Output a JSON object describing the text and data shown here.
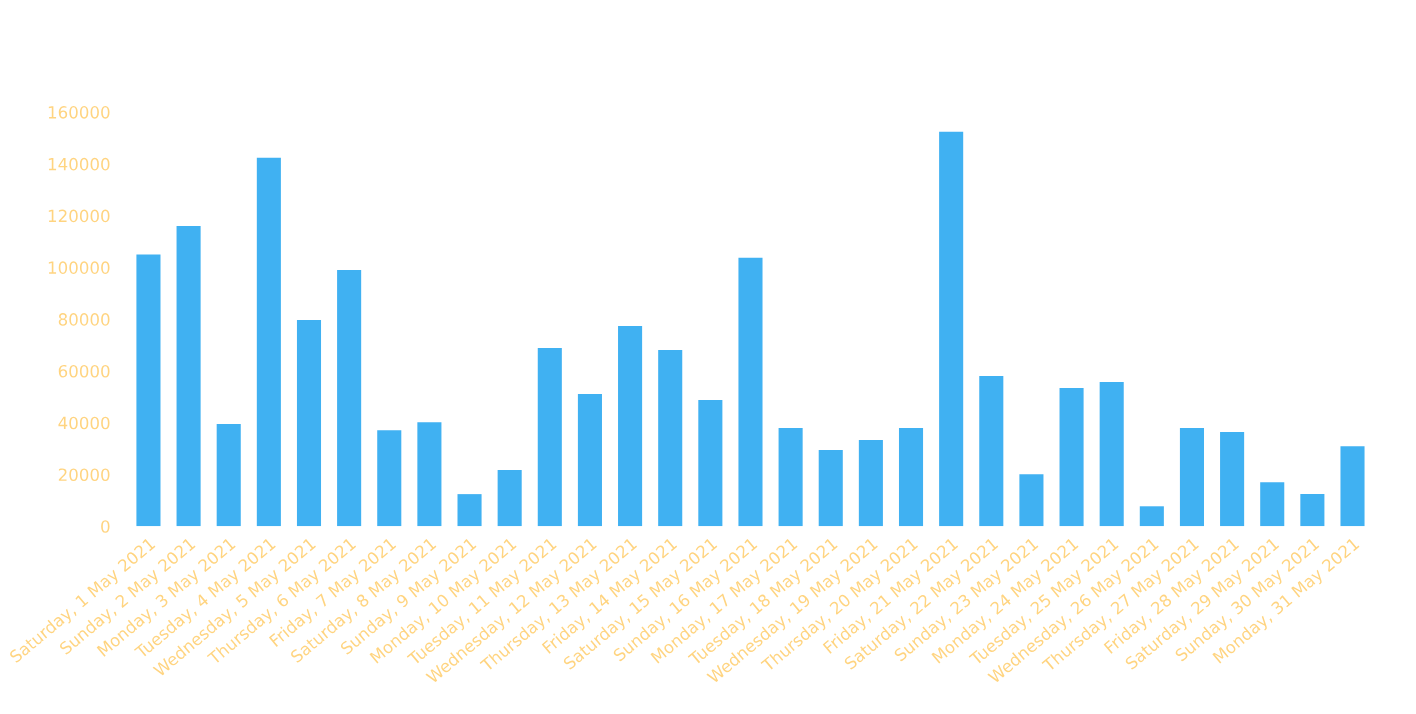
{
  "chart_data": {
    "type": "bar",
    "categories": [
      "Saturday, 1 May 2021",
      "Sunday, 2 May 2021",
      "Monday, 3 May 2021",
      "Tuesday, 4 May 2021",
      "Wednesday, 5 May 2021",
      "Thursday, 6 May 2021",
      "Friday, 7 May 2021",
      "Saturday, 8 May 2021",
      "Sunday, 9 May 2021",
      "Monday, 10 May 2021",
      "Tuesday, 11 May 2021",
      "Wednesday, 12 May 2021",
      "Thursday, 13 May 2021",
      "Friday, 14 May 2021",
      "Saturday, 15 May 2021",
      "Sunday, 16 May 2021",
      "Monday, 17 May 2021",
      "Tuesday, 18 May 2021",
      "Wednesday, 19 May 2021",
      "Thursday, 20 May 2021",
      "Friday, 21 May 2021",
      "Saturday, 22 May 2021",
      "Sunday, 23 May 2021",
      "Monday, 24 May 2021",
      "Tuesday, 25 May 2021",
      "Wednesday, 26 May 2021",
      "Thursday, 27 May 2021",
      "Friday, 28 May 2021",
      "Saturday, 29 May 2021",
      "Sunday, 30 May 2021",
      "Monday, 31 May 2021"
    ],
    "values": [
      105000,
      116000,
      39500,
      142400,
      79700,
      99000,
      37100,
      40200,
      12400,
      21700,
      68900,
      51100,
      77400,
      68100,
      48800,
      103700,
      37900,
      29400,
      33300,
      37900,
      152400,
      58000,
      20100,
      53400,
      55700,
      7700,
      37900,
      36400,
      17000,
      12400,
      30900
    ],
    "color": "#40b1f2",
    "ylim": [
      0,
      160000
    ],
    "yticks": [
      0,
      20000,
      40000,
      60000,
      80000,
      100000,
      120000,
      140000,
      160000
    ],
    "grid": false,
    "legend": false
  }
}
